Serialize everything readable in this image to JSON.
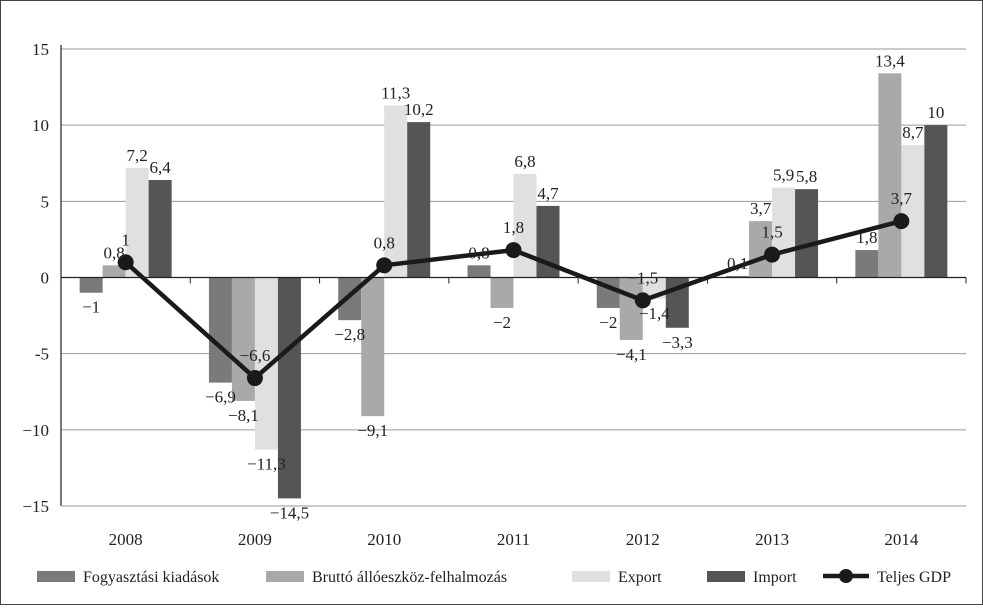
{
  "chart_data": {
    "type": "bar",
    "categories": [
      "2008",
      "2009",
      "2010",
      "2011",
      "2012",
      "2013",
      "2014"
    ],
    "ylim": [
      -15,
      15
    ],
    "yticks": [
      "15",
      "10",
      "5",
      "0",
      "-5",
      "−10",
      "−15"
    ],
    "grid": true,
    "legend_position": "bottom",
    "series": [
      {
        "name": "Fogyasztási kiadások",
        "type": "bar",
        "color": "#7a7a7a",
        "values": [
          -1,
          -6.9,
          -2.8,
          0.8,
          -2,
          0.1,
          1.8
        ],
        "labels": [
          "−1",
          "−6,9",
          "−2,8",
          "0,8",
          "−2",
          "0,1",
          "1,8"
        ]
      },
      {
        "name": "Bruttó állóeszköz-felhalmozás",
        "type": "bar",
        "color": "#a9a9a9",
        "values": [
          0.8,
          -8.1,
          -9.1,
          -2,
          -4.1,
          3.7,
          13.4
        ],
        "labels": [
          "0,8",
          "−8,1",
          "−9,1",
          "−2",
          "−4,1",
          "3,7",
          "13,4"
        ]
      },
      {
        "name": "Export",
        "type": "bar",
        "color": "#e0e0e0",
        "values": [
          7.2,
          -11.3,
          11.3,
          6.8,
          -1.4,
          5.9,
          8.7
        ],
        "labels": [
          "7,2",
          "−11,3",
          "11,3",
          "6,8",
          "−1,4",
          "5,9",
          "8,7"
        ]
      },
      {
        "name": "Import",
        "type": "bar",
        "color": "#555555",
        "values": [
          6.4,
          -14.5,
          10.2,
          4.7,
          -3.3,
          5.8,
          10
        ],
        "labels": [
          "6,4",
          "−14,5",
          "10,2",
          "4,7",
          "−3,3",
          "5,8",
          "10"
        ]
      },
      {
        "name": "Teljes GDP",
        "type": "line",
        "color": "#1a1a1a",
        "values": [
          1,
          -6.6,
          0.8,
          1.8,
          -1.5,
          1.5,
          3.7
        ],
        "labels": [
          "1",
          "−6,6",
          "0,8",
          "1,8",
          "−1,5",
          "1,5",
          "3,7"
        ]
      }
    ]
  }
}
